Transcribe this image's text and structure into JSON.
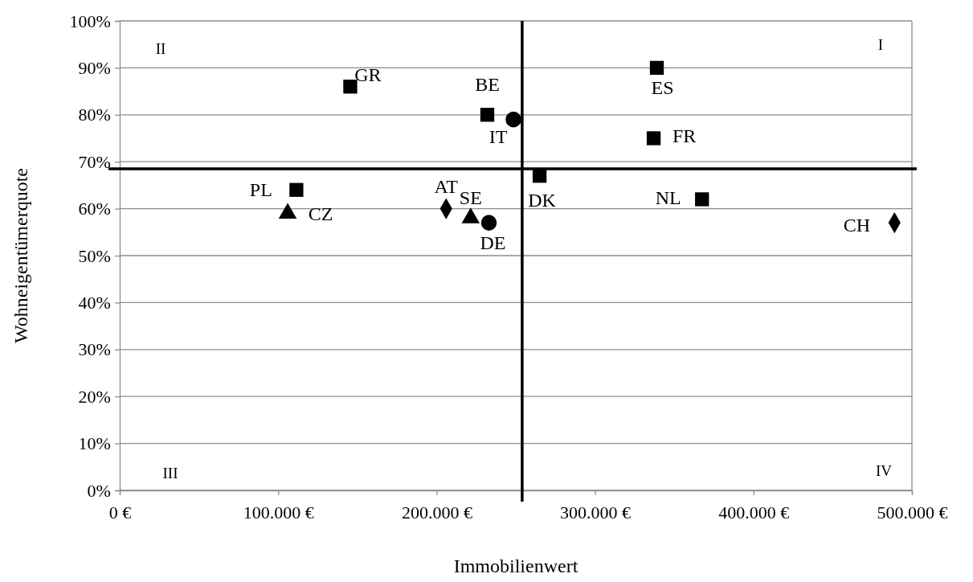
{
  "chart_data": {
    "type": "scatter",
    "xlabel": "Immobilienwert",
    "ylabel": "Wohneigentümerquote",
    "xlim": [
      0,
      500000
    ],
    "xticks": [
      {
        "value": 0,
        "label": "0 €"
      },
      {
        "value": 100000,
        "label": "100.000 €"
      },
      {
        "value": 200000,
        "label": "200.000 €"
      },
      {
        "value": 300000,
        "label": "300.000 €"
      },
      {
        "value": 400000,
        "label": "400.000 €"
      },
      {
        "value": 500000,
        "label": "500.000 €"
      }
    ],
    "ylim": [
      0,
      100
    ],
    "yticks": [
      {
        "value": 0,
        "label": "0%"
      },
      {
        "value": 10,
        "label": "10%"
      },
      {
        "value": 20,
        "label": "20%"
      },
      {
        "value": 30,
        "label": "30%"
      },
      {
        "value": 40,
        "label": "40%"
      },
      {
        "value": 50,
        "label": "50%"
      },
      {
        "value": 60,
        "label": "60%"
      },
      {
        "value": 70,
        "label": "70%"
      },
      {
        "value": 80,
        "label": "80%"
      },
      {
        "value": 90,
        "label": "90%"
      },
      {
        "value": 100,
        "label": "100%"
      }
    ],
    "grid": "y",
    "series": [
      {
        "marker": "square",
        "color": "#000000",
        "x": [
          232000,
          339000,
          337000,
          111500,
          367500
        ],
        "values": [
          80,
          90,
          75,
          64,
          62
        ]
      },
      {
        "marker": "circle",
        "color": "#000000",
        "x": [
          248500,
          233000
        ],
        "values": [
          79,
          57
        ]
      },
      {
        "marker": "triangle",
        "color": "#000000",
        "x": [
          106000,
          221500
        ],
        "values": [
          59,
          58
        ]
      },
      {
        "marker": "diamond",
        "color": "#000000",
        "x": [
          206000,
          489000
        ],
        "values": [
          60,
          57
        ]
      },
      {
        "marker": "square",
        "color": "#000000",
        "x": [
          145500,
          265000
        ],
        "values": [
          86,
          67
        ]
      }
    ],
    "ref_lines": [
      {
        "axis": "x",
        "value": 254000,
        "color": "#000000"
      },
      {
        "axis": "y",
        "value": 68.5,
        "color": "#000000"
      }
    ],
    "annotations": [
      {
        "text": "GR",
        "x": 145500,
        "y": 86
      },
      {
        "text": "BE",
        "x": 232000,
        "y": 80
      },
      {
        "text": "IT",
        "x": 248500,
        "y": 79
      },
      {
        "text": "ES",
        "x": 339000,
        "y": 90
      },
      {
        "text": "FR",
        "x": 337000,
        "y": 75
      },
      {
        "text": "PL",
        "x": 111500,
        "y": 64
      },
      {
        "text": "CZ",
        "x": 106000,
        "y": 59
      },
      {
        "text": "AT",
        "x": 206000,
        "y": 60
      },
      {
        "text": "SE",
        "x": 221500,
        "y": 58
      },
      {
        "text": "DE",
        "x": 233000,
        "y": 57
      },
      {
        "text": "DK",
        "x": 265000,
        "y": 67
      },
      {
        "text": "NL",
        "x": 367500,
        "y": 62
      },
      {
        "text": "CH",
        "x": 489000,
        "y": 57
      },
      "I",
      "II",
      "III",
      "IV"
    ]
  }
}
